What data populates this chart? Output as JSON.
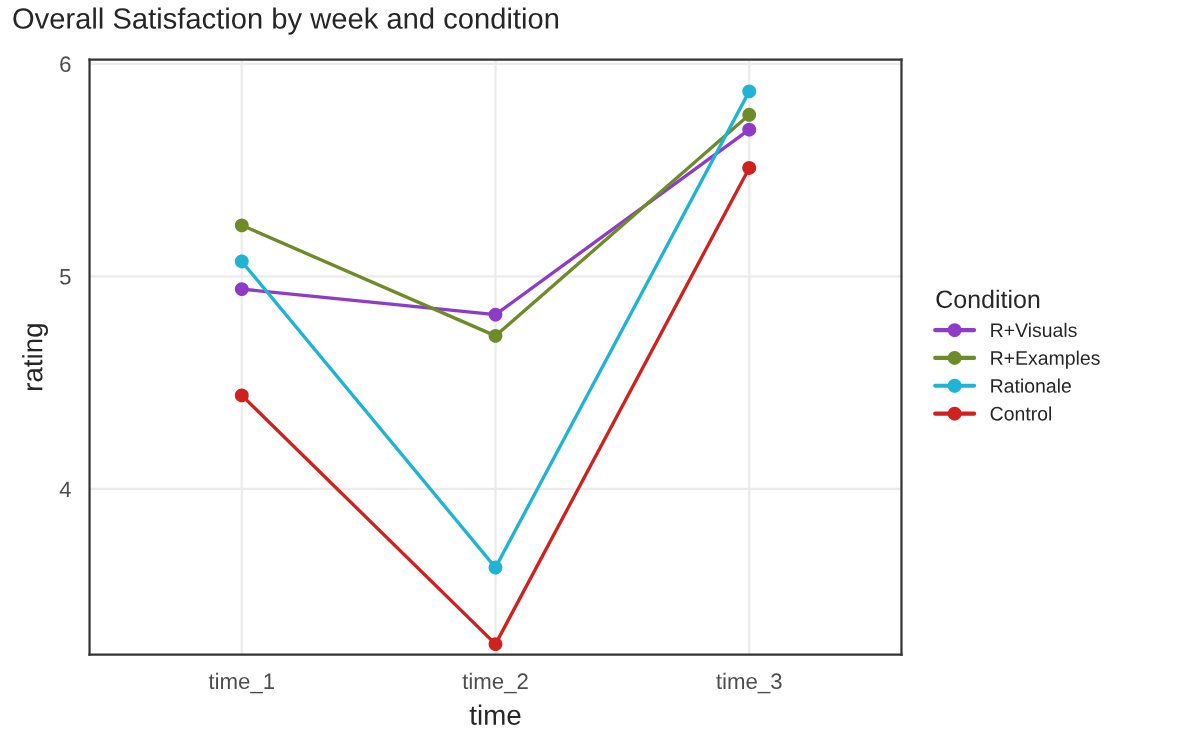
{
  "chart_data": {
    "type": "line",
    "title": "Overall Satisfaction by week and condition",
    "xlabel": "time",
    "ylabel": "rating",
    "legend_title": "Condition",
    "categories": [
      "time_1",
      "time_2",
      "time_3"
    ],
    "series": [
      {
        "name": "R+Visuals",
        "color": "#8e3bc8",
        "values": [
          4.94,
          4.82,
          5.69
        ]
      },
      {
        "name": "R+Examples",
        "color": "#6e8b2a",
        "values": [
          5.24,
          4.72,
          5.76
        ]
      },
      {
        "name": "Rationale",
        "color": "#1fb3d6",
        "values": [
          5.07,
          3.63,
          5.87
        ]
      },
      {
        "name": "Control",
        "color": "#d0211f",
        "values": [
          4.44,
          3.27,
          5.51
        ]
      }
    ],
    "ylim": [
      3.22,
      6.02
    ],
    "yticks": [
      4,
      5,
      6
    ],
    "grid": true,
    "legend": "right",
    "marker": "circle",
    "line_style": "solid"
  }
}
